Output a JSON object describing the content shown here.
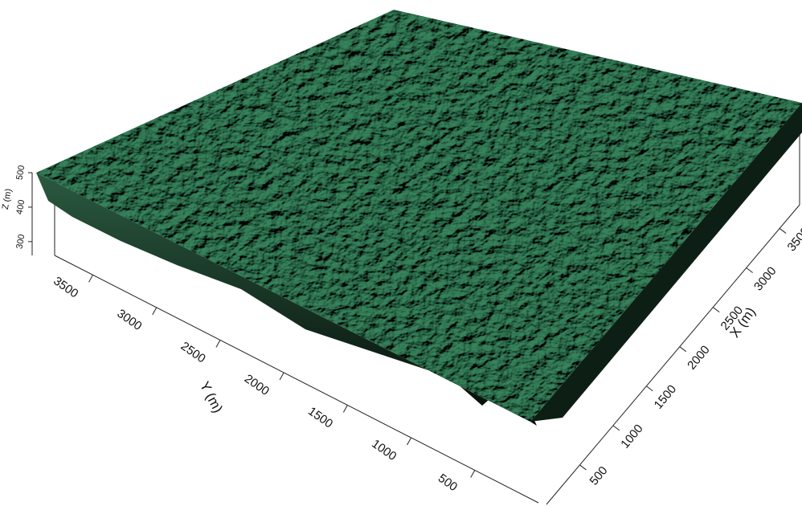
{
  "chart_data": {
    "type": "surface3d",
    "xlabel": "X (m)",
    "ylabel": "Y (m)",
    "zlabel": "Z (m)",
    "xlim": [
      0,
      3800
    ],
    "xticks": [
      500,
      1000,
      1500,
      2000,
      2500,
      3000,
      3500
    ],
    "ylim": [
      0,
      3800
    ],
    "yticks": [
      500,
      1000,
      1500,
      2000,
      2500,
      3000,
      3500
    ],
    "zlim": [
      260,
      500
    ],
    "zticks": [
      300,
      400,
      500
    ],
    "color": "#2f7350"
  }
}
